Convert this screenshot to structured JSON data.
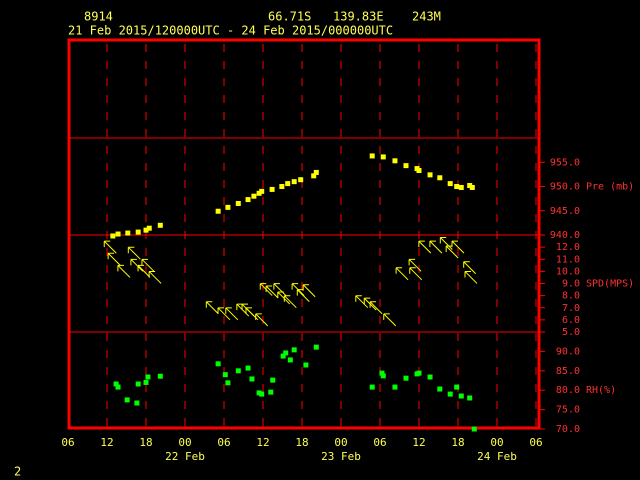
{
  "header": {
    "station": "8914",
    "lat": "66.71S",
    "lon": "139.83E",
    "elev": "243M",
    "period": "21 Feb 2015/120000UTC - 24 Feb 2015/000000UTC"
  },
  "x_axis": {
    "xlim": [
      0,
      72
    ],
    "xticks": [
      {
        "value": 0,
        "label": "06"
      },
      {
        "value": 6,
        "label": "12"
      },
      {
        "value": 12,
        "label": "18"
      },
      {
        "value": 18,
        "label": "00"
      },
      {
        "value": 24,
        "label": "06"
      },
      {
        "value": 30,
        "label": "12"
      },
      {
        "value": 36,
        "label": "18"
      },
      {
        "value": 42,
        "label": "00"
      },
      {
        "value": 48,
        "label": "06"
      },
      {
        "value": 54,
        "label": "12"
      },
      {
        "value": 60,
        "label": "18"
      },
      {
        "value": 66,
        "label": "00"
      },
      {
        "value": 72,
        "label": "06"
      }
    ],
    "dates": [
      {
        "value": 18,
        "label": "22 Feb"
      },
      {
        "value": 42,
        "label": "23 Feb"
      },
      {
        "value": 66,
        "label": "24 Feb"
      }
    ]
  },
  "chart_data": [
    {
      "type": "scatter",
      "axis_label": "Pre (mb)",
      "color": "#ffff00",
      "ylim": [
        940,
        960
      ],
      "yticks": [
        {
          "value": 940,
          "label": "940.0"
        },
        {
          "value": 945,
          "label": "945.0"
        },
        {
          "value": 950,
          "label": "950.0"
        },
        {
          "value": 955,
          "label": "955.0"
        }
      ],
      "x": [
        6.9,
        7.7,
        9.2,
        10.8,
        12.0,
        12.5,
        14.2,
        23.1,
        24.6,
        26.2,
        27.7,
        28.6,
        29.4,
        29.8,
        31.4,
        32.9,
        33.8,
        34.8,
        35.8,
        37.8,
        38.2,
        46.8,
        48.5,
        50.3,
        52.0,
        53.7,
        54.0,
        55.7,
        57.2,
        58.8,
        59.8,
        60.5,
        61.8,
        62.2
      ],
      "values": [
        939.8,
        940.2,
        940.4,
        940.6,
        941.0,
        941.4,
        942.0,
        944.9,
        945.7,
        946.5,
        947.3,
        948.0,
        948.6,
        949.0,
        949.4,
        950.0,
        950.6,
        951.0,
        951.4,
        952.2,
        952.9,
        956.3,
        956.1,
        955.3,
        954.3,
        953.7,
        953.3,
        952.4,
        951.8,
        950.6,
        950.0,
        949.8,
        950.2,
        949.8
      ]
    },
    {
      "type": "arrow",
      "axis_label": "SPD(MPS)",
      "color": "#ffff00",
      "ylim": [
        5,
        13
      ],
      "yticks": [
        {
          "value": 5,
          "label": "5.0"
        },
        {
          "value": 6,
          "label": "6.0"
        },
        {
          "value": 7,
          "label": "7.0"
        },
        {
          "value": 8,
          "label": "8.0"
        },
        {
          "value": 9,
          "label": "9.0"
        },
        {
          "value": 10,
          "label": "10.0"
        },
        {
          "value": 11,
          "label": "11.0"
        },
        {
          "value": 12,
          "label": "12.0"
        }
      ],
      "x": [
        6.5,
        7.1,
        8.6,
        10.2,
        10.6,
        11.7,
        12.3,
        13.4,
        22.2,
        24.0,
        25.2,
        26.9,
        27.7,
        28.3,
        29.8,
        30.5,
        31.4,
        32.6,
        33.2,
        34.2,
        35.4,
        36.2,
        37.1,
        45.2,
        46.5,
        47.4,
        49.5,
        51.4,
        53.4,
        53.5,
        54.9,
        56.6,
        58.2,
        59.1,
        60.0,
        61.8,
        62.0
      ],
      "values": [
        12.0,
        11.0,
        10.0,
        11.5,
        10.5,
        10.0,
        10.5,
        9.5,
        7.0,
        6.5,
        6.5,
        6.8,
        6.8,
        6.5,
        6.0,
        8.5,
        8.3,
        8.5,
        7.8,
        7.5,
        8.5,
        8.0,
        8.4,
        7.5,
        7.3,
        7.0,
        6.0,
        9.8,
        10.5,
        9.8,
        12.0,
        12.0,
        12.3,
        11.6,
        12.0,
        10.3,
        9.5
      ]
    },
    {
      "type": "scatter",
      "axis_label": "RH(%)",
      "color": "#00ff00",
      "ylim": [
        70,
        95
      ],
      "yticks": [
        {
          "value": 70,
          "label": "70.0"
        },
        {
          "value": 75,
          "label": "75.0"
        },
        {
          "value": 80,
          "label": "80.0"
        },
        {
          "value": 85,
          "label": "85.0"
        },
        {
          "value": 90,
          "label": "90.0"
        }
      ],
      "x": [
        7.4,
        7.7,
        9.1,
        10.6,
        10.8,
        12.0,
        12.3,
        14.2,
        23.1,
        24.2,
        24.6,
        26.2,
        27.7,
        28.3,
        29.4,
        29.8,
        31.2,
        31.5,
        33.1,
        33.5,
        34.2,
        34.8,
        36.6,
        38.2,
        46.8,
        48.3,
        48.5,
        50.3,
        52.0,
        53.7,
        54.0,
        55.7,
        57.2,
        58.8,
        59.8,
        60.5,
        61.8,
        62.5
      ],
      "values": [
        81.6,
        80.8,
        77.5,
        76.7,
        81.6,
        82.0,
        83.4,
        83.6,
        86.8,
        84.0,
        81.9,
        85.0,
        85.7,
        82.9,
        79.3,
        79.0,
        79.5,
        82.6,
        88.8,
        89.6,
        87.8,
        90.4,
        86.5,
        91.1,
        80.8,
        84.4,
        83.7,
        80.8,
        83.1,
        84.2,
        84.4,
        83.4,
        80.3,
        79.0,
        80.8,
        78.5,
        78.0,
        70.0
      ]
    }
  ],
  "footer": "2"
}
